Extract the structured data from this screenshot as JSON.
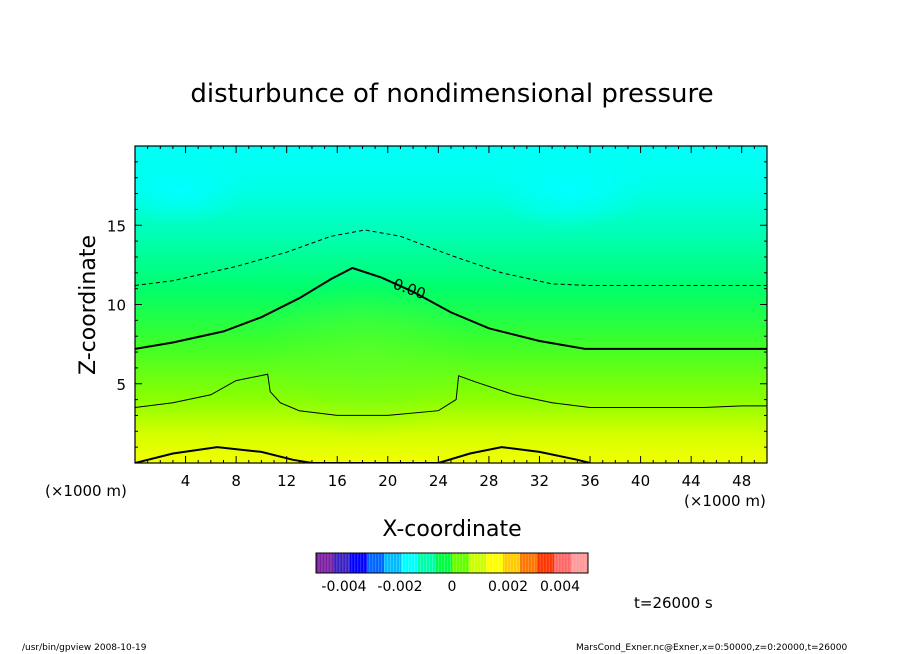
{
  "chart_data": {
    "type": "heatmap",
    "title": "disturbunce of nondimensional pressure",
    "xlabel": "X-coordinate",
    "ylabel": "Z-coordinate",
    "x_unit": "(×1000 m)",
    "y_unit": "(×1000 m)",
    "xlim": [
      0,
      50
    ],
    "ylim": [
      0,
      20
    ],
    "xticks": [
      "4",
      "8",
      "12",
      "16",
      "20",
      "24",
      "28",
      "32",
      "36",
      "40",
      "44",
      "48"
    ],
    "yticks": [
      "5",
      "10",
      "15"
    ],
    "contour_label": "0.00",
    "contours": [
      {
        "style": "dashed",
        "width": 1,
        "x": [
          0,
          3,
          8,
          12,
          15.5,
          18.2,
          21,
          25,
          29,
          33,
          36,
          40,
          45,
          50
        ],
        "y": [
          11.2,
          11.5,
          12.4,
          13.3,
          14.3,
          14.7,
          14.3,
          13.1,
          12,
          11.3,
          11.2,
          11.2,
          11.2,
          11.2
        ]
      },
      {
        "style": "solid",
        "width": 2,
        "label": "0.00",
        "x": [
          0,
          3,
          7,
          10,
          13,
          15.5,
          17.2,
          19.5,
          22,
          25,
          28,
          32,
          35.6,
          40,
          45,
          50
        ],
        "y": [
          7.2,
          7.6,
          8.3,
          9.2,
          10.4,
          11.6,
          12.3,
          11.7,
          10.8,
          9.5,
          8.5,
          7.7,
          7.2,
          7.2,
          7.2,
          7.2
        ]
      },
      {
        "style": "solid",
        "width": 1,
        "x": [
          0,
          3,
          6,
          8,
          10.5,
          10.7,
          11.5,
          13,
          16,
          20,
          24,
          25.4,
          25.6,
          27,
          30,
          33,
          36,
          40,
          45,
          48,
          50
        ],
        "y": [
          3.5,
          3.8,
          4.3,
          5.2,
          5.6,
          4.5,
          3.8,
          3.3,
          3,
          3,
          3.3,
          4,
          5.5,
          5.1,
          4.3,
          3.8,
          3.5,
          3.5,
          3.5,
          3.6,
          3.6
        ]
      },
      {
        "style": "solid",
        "width": 2,
        "x": [
          0,
          3,
          6.5,
          10,
          12.5,
          14,
          16,
          20,
          24,
          26.5,
          29,
          32,
          35,
          36
        ],
        "y": [
          0,
          0.6,
          1,
          0.7,
          0.2,
          0,
          0,
          0,
          0,
          0.6,
          1,
          0.7,
          0.2,
          0
        ]
      }
    ],
    "colorbar": {
      "tick_labels": [
        "-0.004",
        "-0.002",
        "0",
        "0.002",
        "0.004"
      ],
      "colors": [
        "#7b1fa2",
        "#3a1fc0",
        "#0000ff",
        "#0066ff",
        "#00bbff",
        "#00ffff",
        "#00ffaa",
        "#00ff44",
        "#66ff00",
        "#ccff00",
        "#ffff00",
        "#ffcc00",
        "#ff7700",
        "#ff3300",
        "#ff6666",
        "#ff9999"
      ]
    },
    "grid": false,
    "time_label": "t=26000 s"
  },
  "footer": {
    "left": "/usr/bin/gpview   2008-10-19",
    "right": "MarsCond_Exner.nc@Exner,x=0:50000,z=0:20000,t=26000"
  }
}
